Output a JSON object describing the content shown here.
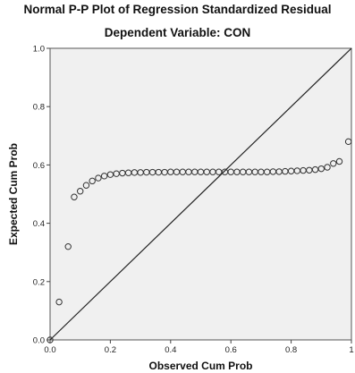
{
  "chart_data": {
    "type": "scatter",
    "title": "Normal P-P Plot of Regression Standardized Residual",
    "subtitle": "Dependent Variable: CON",
    "xlabel": "Observed Cum Prob",
    "ylabel": "Expected Cum Prob",
    "xlim": [
      0,
      1
    ],
    "ylim": [
      0,
      1
    ],
    "xticks": [
      "0.0",
      "0.2",
      "0.4",
      "0.6",
      "0.8",
      "1"
    ],
    "yticks": [
      "0.0",
      "0.2",
      "0.4",
      "0.6",
      "0.8",
      "1.0"
    ],
    "reference_line": [
      [
        0,
        0
      ],
      [
        1,
        1
      ]
    ],
    "grid": false,
    "points": [
      [
        0.0,
        0.0
      ],
      [
        0.03,
        0.13
      ],
      [
        0.06,
        0.32
      ],
      [
        0.08,
        0.49
      ],
      [
        0.1,
        0.51
      ],
      [
        0.12,
        0.53
      ],
      [
        0.14,
        0.545
      ],
      [
        0.16,
        0.555
      ],
      [
        0.18,
        0.562
      ],
      [
        0.2,
        0.567
      ],
      [
        0.22,
        0.57
      ],
      [
        0.24,
        0.572
      ],
      [
        0.26,
        0.573
      ],
      [
        0.28,
        0.574
      ],
      [
        0.3,
        0.574
      ],
      [
        0.32,
        0.575
      ],
      [
        0.34,
        0.575
      ],
      [
        0.36,
        0.575
      ],
      [
        0.38,
        0.575
      ],
      [
        0.4,
        0.576
      ],
      [
        0.42,
        0.576
      ],
      [
        0.44,
        0.576
      ],
      [
        0.46,
        0.576
      ],
      [
        0.48,
        0.576
      ],
      [
        0.5,
        0.576
      ],
      [
        0.52,
        0.576
      ],
      [
        0.54,
        0.576
      ],
      [
        0.56,
        0.576
      ],
      [
        0.58,
        0.576
      ],
      [
        0.6,
        0.576
      ],
      [
        0.62,
        0.576
      ],
      [
        0.64,
        0.576
      ],
      [
        0.66,
        0.576
      ],
      [
        0.68,
        0.576
      ],
      [
        0.7,
        0.576
      ],
      [
        0.72,
        0.576
      ],
      [
        0.74,
        0.577
      ],
      [
        0.76,
        0.577
      ],
      [
        0.78,
        0.578
      ],
      [
        0.8,
        0.579
      ],
      [
        0.82,
        0.58
      ],
      [
        0.84,
        0.581
      ],
      [
        0.86,
        0.582
      ],
      [
        0.88,
        0.584
      ],
      [
        0.9,
        0.587
      ],
      [
        0.92,
        0.592
      ],
      [
        0.94,
        0.605
      ],
      [
        0.96,
        0.612
      ],
      [
        0.99,
        0.68
      ]
    ],
    "colors": {
      "plot_background": "#f0f0f0",
      "marker_stroke": "#333333",
      "line": "#222222"
    }
  }
}
